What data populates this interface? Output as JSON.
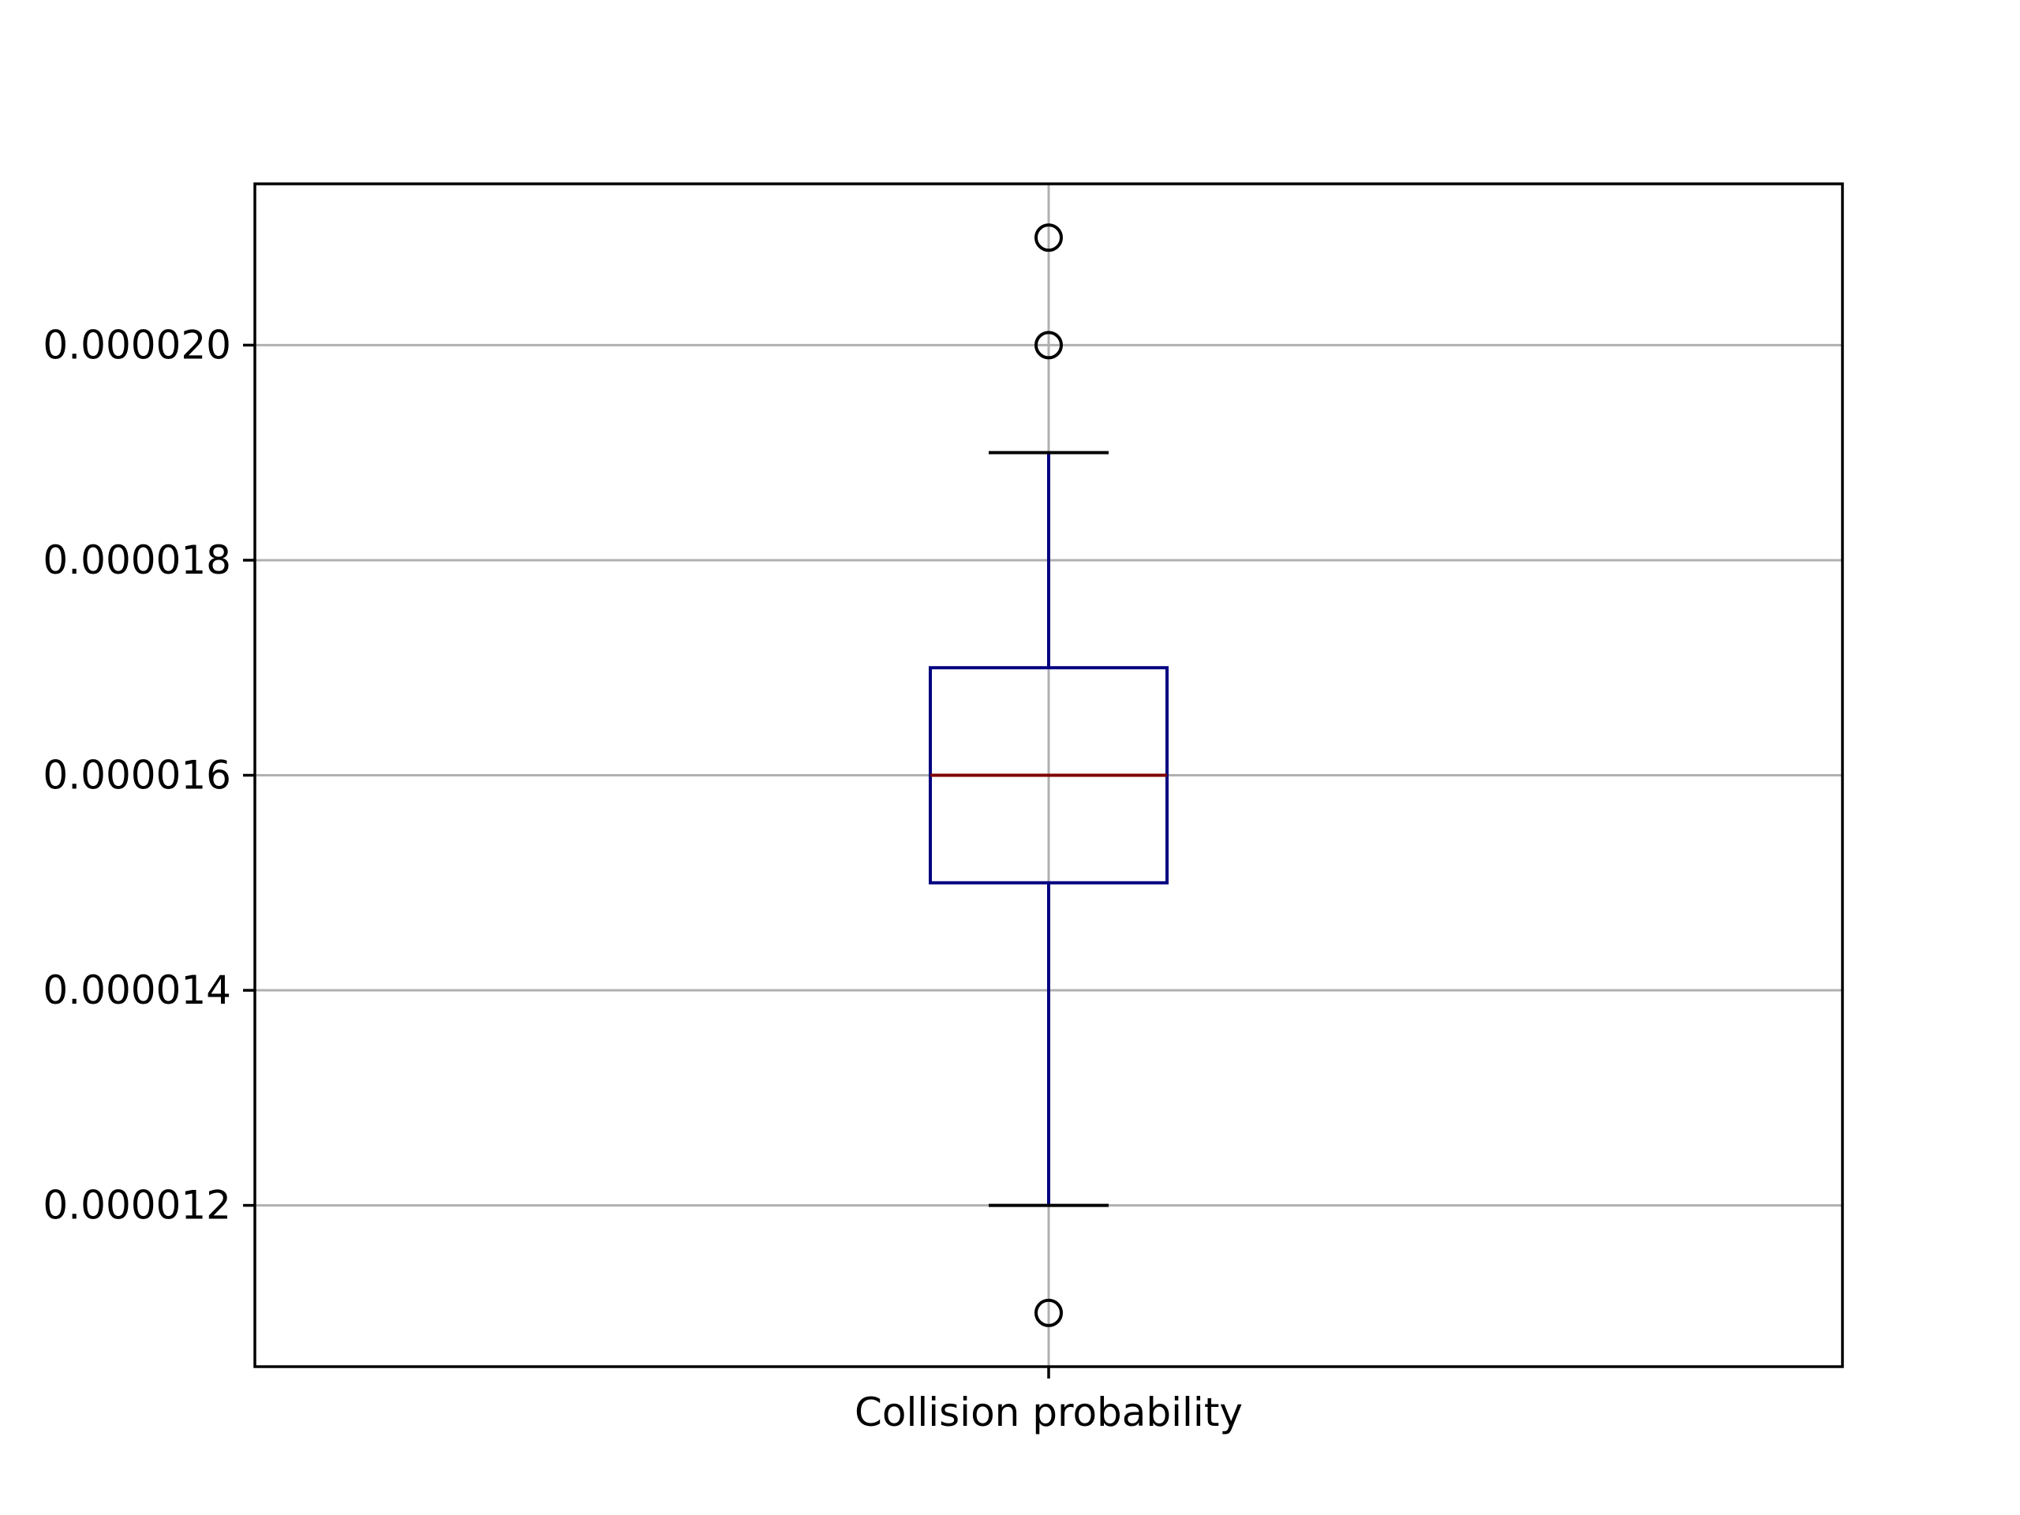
{
  "chart_data": {
    "type": "box",
    "title": "",
    "xlabel": "",
    "ylabel": "",
    "categories": [
      "Collision probability"
    ],
    "ylim": [
      1.05e-05,
      2.15e-05
    ],
    "yticks": [
      1.2e-05,
      1.4e-05,
      1.6e-05,
      1.8e-05,
      2e-05
    ],
    "ytick_labels": [
      "0.000012",
      "0.000014",
      "0.000016",
      "0.000018",
      "0.000020"
    ],
    "grid": true,
    "boxes": [
      {
        "label": "Collision probability",
        "whisker_low": 1.2e-05,
        "q1": 1.5e-05,
        "median": 1.6e-05,
        "q3": 1.7e-05,
        "whisker_high": 1.9e-05,
        "outliers": [
          1.1e-05,
          2e-05,
          2.1e-05
        ]
      }
    ],
    "colors": {
      "box": "#000080",
      "median": "#800000",
      "caps": "#000000",
      "outliers": "#000000",
      "grid": "#b0b0b0"
    }
  }
}
